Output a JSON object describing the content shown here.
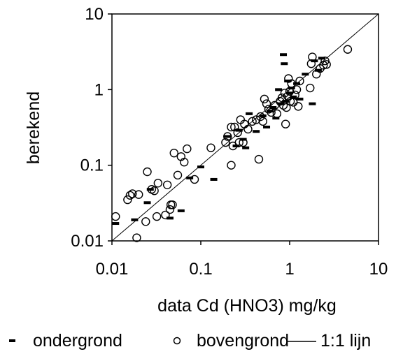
{
  "chart_data": {
    "type": "scatter",
    "xlabel": "data Cd (HNO3) mg/kg",
    "ylabel": "berekend",
    "x_scale": "log",
    "y_scale": "log",
    "xlim": [
      0.01,
      10
    ],
    "ylim": [
      0.01,
      10
    ],
    "x_tick_labels": [
      "0.01",
      "0.1",
      "1",
      "10"
    ],
    "y_tick_labels": [
      "0.01",
      "0.1",
      "1",
      "10"
    ],
    "grid": false,
    "legend_position": "bottom",
    "reference_line": {
      "name": "1:1 lijn",
      "points": [
        [
          0.01,
          0.01
        ],
        [
          10,
          10
        ]
      ]
    },
    "series": [
      {
        "name": "ondergrond",
        "marker": "dash",
        "points": [
          [
            0.011,
            0.017
          ],
          [
            0.018,
            0.019
          ],
          [
            0.025,
            0.032
          ],
          [
            0.027,
            0.048
          ],
          [
            0.045,
            0.02
          ],
          [
            0.06,
            0.025
          ],
          [
            0.075,
            0.068
          ],
          [
            0.1,
            0.095
          ],
          [
            0.14,
            0.065
          ],
          [
            0.2,
            0.24
          ],
          [
            0.25,
            0.18
          ],
          [
            0.27,
            0.29
          ],
          [
            0.3,
            0.22
          ],
          [
            0.32,
            0.17
          ],
          [
            0.35,
            0.48
          ],
          [
            0.42,
            0.28
          ],
          [
            0.5,
            0.45
          ],
          [
            0.55,
            0.32
          ],
          [
            0.6,
            0.52
          ],
          [
            0.65,
            0.58
          ],
          [
            0.7,
            0.42
          ],
          [
            0.75,
            1.0
          ],
          [
            0.8,
            0.65
          ],
          [
            0.85,
            2.9
          ],
          [
            0.87,
            2.2
          ],
          [
            0.9,
            0.7
          ],
          [
            0.95,
            1.3
          ],
          [
            1.0,
            0.9
          ],
          [
            1.05,
            1.05
          ],
          [
            1.1,
            0.8
          ],
          [
            1.2,
            1.2
          ],
          [
            1.3,
            0.75
          ],
          [
            1.5,
            1.6
          ],
          [
            1.8,
            0.65
          ],
          [
            1.9,
            2.4
          ],
          [
            2.1,
            1.8
          ],
          [
            2.3,
            2.6
          ]
        ]
      },
      {
        "name": "bovengrond",
        "marker": "circle",
        "points": [
          [
            0.011,
            0.021
          ],
          [
            0.015,
            0.035
          ],
          [
            0.016,
            0.04
          ],
          [
            0.017,
            0.042
          ],
          [
            0.019,
            0.011
          ],
          [
            0.02,
            0.041
          ],
          [
            0.024,
            0.018
          ],
          [
            0.025,
            0.082
          ],
          [
            0.028,
            0.048
          ],
          [
            0.03,
            0.046
          ],
          [
            0.032,
            0.021
          ],
          [
            0.033,
            0.058
          ],
          [
            0.04,
            0.022
          ],
          [
            0.042,
            0.055
          ],
          [
            0.045,
            0.026
          ],
          [
            0.046,
            0.03
          ],
          [
            0.048,
            0.03
          ],
          [
            0.05,
            0.145
          ],
          [
            0.055,
            0.074
          ],
          [
            0.06,
            0.13
          ],
          [
            0.065,
            0.11
          ],
          [
            0.07,
            0.165
          ],
          [
            0.085,
            0.065
          ],
          [
            0.13,
            0.17
          ],
          [
            0.19,
            0.2
          ],
          [
            0.2,
            0.24
          ],
          [
            0.22,
            0.32
          ],
          [
            0.22,
            0.1
          ],
          [
            0.23,
            0.18
          ],
          [
            0.24,
            0.32
          ],
          [
            0.26,
            0.27
          ],
          [
            0.27,
            0.2
          ],
          [
            0.28,
            0.4
          ],
          [
            0.3,
            0.2
          ],
          [
            0.31,
            0.35
          ],
          [
            0.34,
            0.3
          ],
          [
            0.38,
            0.38
          ],
          [
            0.42,
            0.4
          ],
          [
            0.45,
            0.12
          ],
          [
            0.47,
            0.44
          ],
          [
            0.5,
            0.38
          ],
          [
            0.52,
            0.75
          ],
          [
            0.55,
            0.65
          ],
          [
            0.58,
            0.55
          ],
          [
            0.62,
            0.5
          ],
          [
            0.68,
            0.62
          ],
          [
            0.72,
            0.48
          ],
          [
            0.78,
            0.7
          ],
          [
            0.82,
            0.78
          ],
          [
            0.85,
            0.62
          ],
          [
            0.88,
            0.9
          ],
          [
            0.9,
            0.35
          ],
          [
            0.92,
            0.58
          ],
          [
            0.95,
            0.82
          ],
          [
            0.97,
            1.4
          ],
          [
            1.0,
            0.95
          ],
          [
            1.02,
            0.7
          ],
          [
            1.05,
            1.2
          ],
          [
            1.1,
            0.68
          ],
          [
            1.15,
            0.85
          ],
          [
            1.2,
            1.0
          ],
          [
            1.25,
            0.6
          ],
          [
            1.3,
            1.3
          ],
          [
            1.7,
            1.05
          ],
          [
            1.75,
            2.2
          ],
          [
            1.8,
            2.7
          ],
          [
            2.0,
            1.6
          ],
          [
            2.2,
            1.9
          ],
          [
            2.4,
            2.1
          ],
          [
            2.5,
            2.4
          ],
          [
            2.6,
            2.15
          ],
          [
            4.5,
            3.4
          ]
        ]
      }
    ]
  },
  "legend": {
    "items": [
      {
        "symbol": "-",
        "label": "ondergrond"
      },
      {
        "symbol": "o",
        "label": "bovengrond"
      },
      {
        "symbol": "line",
        "label": "1:1 lijn"
      }
    ]
  }
}
